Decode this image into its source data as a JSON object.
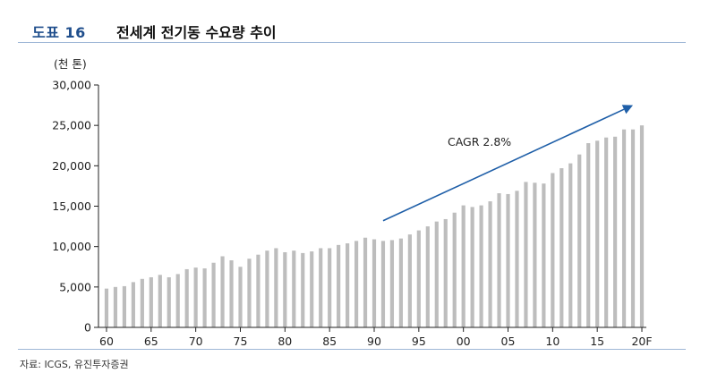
{
  "header": {
    "figure_label": "도표 16",
    "title": "전세계 전기동 수요량 추이"
  },
  "source": "자료: ICGS, 유진투자증권",
  "colors": {
    "bar": "#bdbdbd",
    "arrow": "#1f5fa8",
    "title_accent": "#1f4e8c",
    "rule": "#9fb7d6"
  },
  "chart_data": {
    "type": "bar",
    "title": "전세계 전기동 수요량 추이",
    "ylabel": "(천 톤)",
    "xlabel": "",
    "ylim": [
      0,
      30000
    ],
    "yticks": [
      0,
      5000,
      10000,
      15000,
      20000,
      25000,
      30000
    ],
    "ytick_labels": [
      "0",
      "5,000",
      "10,000",
      "15,000",
      "20,000",
      "25,000",
      "30,000"
    ],
    "xtick_labels": [
      "60",
      "65",
      "70",
      "75",
      "80",
      "85",
      "90",
      "95",
      "00",
      "05",
      "10",
      "15",
      "20F"
    ],
    "xtick_every": 5,
    "categories": [
      "1960",
      "1961",
      "1962",
      "1963",
      "1964",
      "1965",
      "1966",
      "1967",
      "1968",
      "1969",
      "1970",
      "1971",
      "1972",
      "1973",
      "1974",
      "1975",
      "1976",
      "1977",
      "1978",
      "1979",
      "1980",
      "1981",
      "1982",
      "1983",
      "1984",
      "1985",
      "1986",
      "1987",
      "1988",
      "1989",
      "1990",
      "1991",
      "1992",
      "1993",
      "1994",
      "1995",
      "1996",
      "1997",
      "1998",
      "1999",
      "2000",
      "2001",
      "2002",
      "2003",
      "2004",
      "2005",
      "2006",
      "2007",
      "2008",
      "2009",
      "2010",
      "2011",
      "2012",
      "2013",
      "2014",
      "2015",
      "2016",
      "2017",
      "2018",
      "2019",
      "2020F"
    ],
    "values": [
      4800,
      5000,
      5100,
      5600,
      6000,
      6200,
      6500,
      6200,
      6600,
      7200,
      7400,
      7300,
      8000,
      8800,
      8300,
      7500,
      8500,
      9000,
      9500,
      9800,
      9300,
      9500,
      9200,
      9400,
      9800,
      9800,
      10200,
      10400,
      10700,
      11100,
      10900,
      10700,
      10800,
      11000,
      11500,
      12000,
      12500,
      13100,
      13400,
      14200,
      15100,
      14900,
      15100,
      15600,
      16600,
      16500,
      16900,
      18000,
      17900,
      17800,
      19100,
      19700,
      20300,
      21400,
      22800,
      23100,
      23500,
      23600,
      24500,
      24500,
      25000
    ],
    "annotation": {
      "text": "CAGR 2.8%",
      "arrow_from": [
        "1991",
        13200
      ],
      "arrow_to": [
        "2019",
        27500
      ]
    }
  }
}
